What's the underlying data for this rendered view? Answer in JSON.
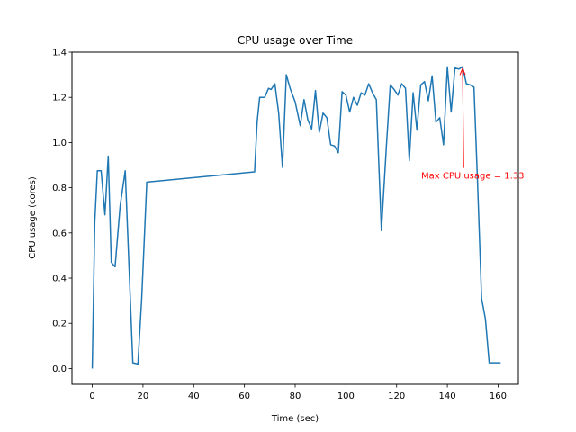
{
  "chart_data": {
    "type": "line",
    "title": "CPU usage over Time",
    "xlabel": "Time (sec)",
    "ylabel": "CPU usage (cores)",
    "xlim": [
      -8,
      168
    ],
    "ylim": [
      -0.07,
      1.4
    ],
    "xticks": [
      0,
      20,
      40,
      60,
      80,
      100,
      120,
      140,
      160
    ],
    "yticks": [
      0.0,
      0.2,
      0.4,
      0.6,
      0.8,
      1.0,
      1.2,
      1.4
    ],
    "xtick_labels": [
      "0",
      "20",
      "40",
      "60",
      "80",
      "100",
      "120",
      "140",
      "160"
    ],
    "ytick_labels": [
      "0.0",
      "0.2",
      "0.4",
      "0.6",
      "0.8",
      "1.0",
      "1.2",
      "1.4"
    ],
    "grid": false,
    "series_color": "#1f77b4",
    "series": [
      {
        "x": [
          0,
          1,
          2,
          3.5,
          5,
          6.3,
          7.5,
          9,
          11,
          13,
          16,
          18,
          19.5,
          21.5,
          64,
          65,
          66,
          68,
          69.5,
          70.5,
          72,
          73.5,
          75,
          76.5,
          78,
          80,
          82,
          83.5,
          85,
          86.5,
          88,
          89.5,
          91,
          92.5,
          94,
          95.5,
          97,
          98.5,
          100,
          101.5,
          103,
          104.5,
          106,
          107.5,
          109,
          110.5,
          112,
          114,
          116,
          117.5,
          119,
          120.5,
          122,
          123.5,
          125,
          126.5,
          128,
          129.5,
          131,
          132.5,
          134,
          135.5,
          137,
          138.5,
          140,
          141.5,
          143,
          144.5,
          146,
          147.5,
          149,
          150.5,
          152,
          153.5,
          155,
          156.5,
          158,
          159.5,
          161
        ],
        "y": [
          0.0,
          0.65,
          0.875,
          0.875,
          0.68,
          0.94,
          0.47,
          0.45,
          0.72,
          0.875,
          0.025,
          0.02,
          0.31,
          0.825,
          0.87,
          1.09,
          1.2,
          1.2,
          1.24,
          1.235,
          1.26,
          1.13,
          0.89,
          1.3,
          1.24,
          1.18,
          1.075,
          1.19,
          1.1,
          1.06,
          1.23,
          1.045,
          1.13,
          1.11,
          0.99,
          0.985,
          0.955,
          1.225,
          1.21,
          1.135,
          1.2,
          1.165,
          1.22,
          1.21,
          1.26,
          1.22,
          1.19,
          0.61,
          0.99,
          1.255,
          1.235,
          1.21,
          1.26,
          1.24,
          0.92,
          1.22,
          1.055,
          1.255,
          1.27,
          1.185,
          1.295,
          1.09,
          1.11,
          0.99,
          1.335,
          1.135,
          1.33,
          1.325,
          1.335,
          1.26,
          1.255,
          1.245,
          0.795,
          0.31,
          0.22,
          0.025,
          0.025,
          0.025,
          0.025
        ]
      }
    ],
    "annotations": [
      {
        "text": "Max CPU usage = 1.33",
        "color": "#ff0000",
        "point": [
          146,
          1.335
        ],
        "text_position": [
          150,
          0.84
        ]
      }
    ]
  }
}
